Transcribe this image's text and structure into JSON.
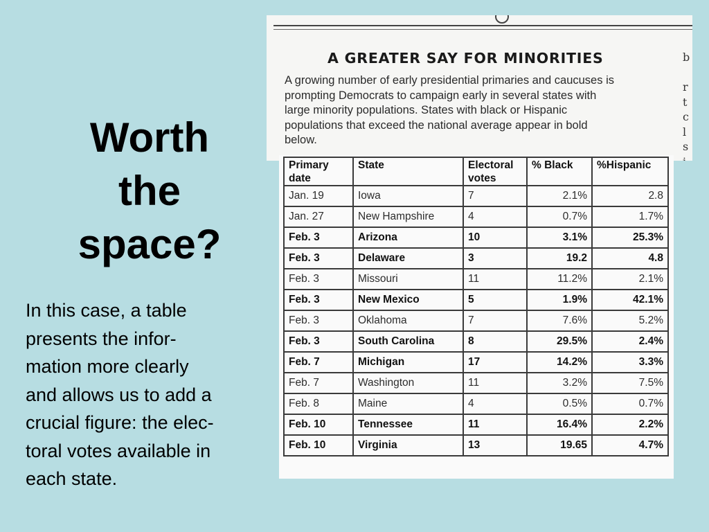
{
  "slide": {
    "title_lines": [
      "Worth",
      "the",
      "space?"
    ],
    "body_lines": [
      "In this case, a table",
      "presents the infor-",
      "mation more clearly",
      "and allows us to add a",
      "crucial figure: the elec-",
      "toral votes available in",
      "each state."
    ]
  },
  "clipping": {
    "title": "A GREATER SAY FOR MINORITIES",
    "caption_lines": [
      "A growing number of early presidential primaries and caucuses is",
      "prompting Democrats to campaign early in several states with",
      "large minority populations. States with black or Hispanic",
      "populations that exceed the national average appear in bold",
      "below."
    ],
    "edge_letters": [
      "b",
      "",
      "r",
      "t",
      "c",
      "l",
      "s",
      "i"
    ],
    "table": {
      "headers": [
        "Primary date",
        "State",
        "Electoral votes",
        "% Black",
        "%Hispanic"
      ],
      "rows": [
        {
          "date": "Jan. 19",
          "state": "Iowa",
          "votes": "7",
          "black": "2.1%",
          "hispanic": "2.8",
          "bold": false
        },
        {
          "date": "Jan. 27",
          "state": "New Hampshire",
          "votes": "4",
          "black": "0.7%",
          "hispanic": "1.7%",
          "bold": false
        },
        {
          "date": "Feb. 3",
          "state": "Arizona",
          "votes": "10",
          "black": "3.1%",
          "hispanic": "25.3%",
          "bold": true
        },
        {
          "date": "Feb. 3",
          "state": "Delaware",
          "votes": "3",
          "black": "19.2",
          "hispanic": "4.8",
          "bold": true
        },
        {
          "date": "Feb. 3",
          "state": "Missouri",
          "votes": "11",
          "black": "11.2%",
          "hispanic": "2.1%",
          "bold": false
        },
        {
          "date": "Feb. 3",
          "state": "New Mexico",
          "votes": "5",
          "black": "1.9%",
          "hispanic": "42.1%",
          "bold": true
        },
        {
          "date": "Feb. 3",
          "state": "Oklahoma",
          "votes": "7",
          "black": "7.6%",
          "hispanic": "5.2%",
          "bold": false
        },
        {
          "date": "Feb. 3",
          "state": "South Carolina",
          "votes": "8",
          "black": "29.5%",
          "hispanic": "2.4%",
          "bold": true
        },
        {
          "date": "Feb. 7",
          "state": "Michigan",
          "votes": "17",
          "black": "14.2%",
          "hispanic": "3.3%",
          "bold": true
        },
        {
          "date": "Feb. 7",
          "state": "Washington",
          "votes": "11",
          "black": "3.2%",
          "hispanic": "7.5%",
          "bold": false
        },
        {
          "date": "Feb. 8",
          "state": "Maine",
          "votes": "4",
          "black": "0.5%",
          "hispanic": "0.7%",
          "bold": false
        },
        {
          "date": "Feb. 10",
          "state": "Tennessee",
          "votes": "11",
          "black": "16.4%",
          "hispanic": "2.2%",
          "bold": true
        },
        {
          "date": "Feb. 10",
          "state": "Virginia",
          "votes": "13",
          "black": "19.65",
          "hispanic": "4.7%",
          "bold": true
        }
      ]
    }
  },
  "colors": {
    "slide_background": "#b7dde2",
    "clipping_paper": "#f6f6f4",
    "text": "#000000"
  }
}
